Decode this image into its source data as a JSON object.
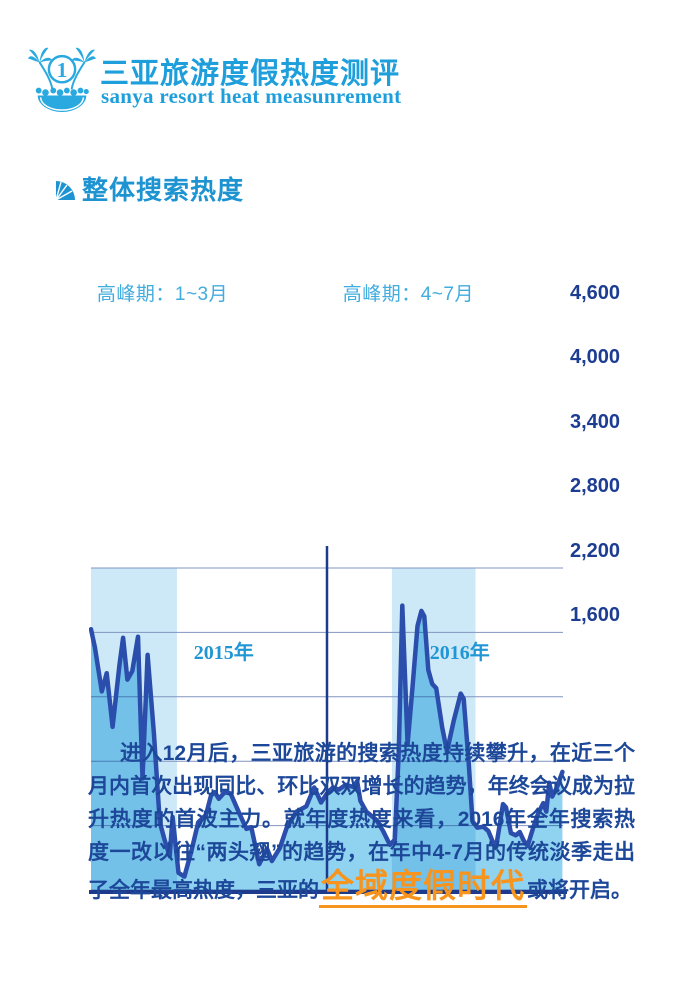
{
  "header": {
    "title": "三亚旅游度假热度测评",
    "subtitle": "sanya resort heat measunrement",
    "logo_number": "1"
  },
  "section": {
    "title": "整体搜索热度"
  },
  "chart_data": {
    "type": "area",
    "title": "整体搜索热度",
    "x_axis": {
      "range_months": [
        0,
        24
      ],
      "divider_month": 12,
      "year_labels": [
        {
          "label": "2015年",
          "center_month": 6.75
        },
        {
          "label": "2016年",
          "center_month": 18.75
        }
      ]
    },
    "y_axis": {
      "min": 1600,
      "max": 4600,
      "ticks": [
        4600,
        4000,
        3400,
        2800,
        2200,
        1600
      ],
      "tick_labels": [
        "4,600",
        "4,000",
        "3,400",
        "2,800",
        "2,200",
        "1,600"
      ]
    },
    "peak_bands": [
      {
        "label": "高峰期：1~3月",
        "from_month": 0,
        "to_month": 4.37,
        "label_month": 0.3
      },
      {
        "label": "高峰期：4~7月",
        "from_month": 15.3,
        "to_month": 19.55,
        "label_month": 12.8
      }
    ],
    "grid": true,
    "legend": false,
    "series": [
      {
        "points": [
          [
            0,
            4030
          ],
          [
            0.2,
            3860
          ],
          [
            0.55,
            3450
          ],
          [
            0.8,
            3620
          ],
          [
            1.1,
            3120
          ],
          [
            1.45,
            3700
          ],
          [
            1.63,
            3950
          ],
          [
            1.85,
            3560
          ],
          [
            2.1,
            3640
          ],
          [
            2.39,
            3960
          ],
          [
            2.62,
            2640
          ],
          [
            2.88,
            3790
          ],
          [
            3.2,
            3060
          ],
          [
            3.5,
            2230
          ],
          [
            3.75,
            2060
          ],
          [
            4,
            1915
          ],
          [
            4.15,
            2280
          ],
          [
            4.45,
            1760
          ],
          [
            4.75,
            1725
          ],
          [
            5.1,
            1960
          ],
          [
            5.45,
            2230
          ],
          [
            5.85,
            2300
          ],
          [
            6.1,
            2480
          ],
          [
            6.3,
            2510
          ],
          [
            6.5,
            2450
          ],
          [
            6.8,
            2510
          ],
          [
            7.1,
            2500
          ],
          [
            7.55,
            2310
          ],
          [
            7.9,
            2170
          ],
          [
            8.15,
            2185
          ],
          [
            8.55,
            1840
          ],
          [
            8.95,
            1985
          ],
          [
            9.2,
            1870
          ],
          [
            9.6,
            1990
          ],
          [
            9.95,
            2180
          ],
          [
            10.45,
            2330
          ],
          [
            10.95,
            2380
          ],
          [
            11.35,
            2555
          ],
          [
            11.7,
            2415
          ],
          [
            12,
            2500
          ],
          [
            12.3,
            2555
          ],
          [
            12.6,
            2535
          ],
          [
            12.95,
            2580
          ],
          [
            13.35,
            2560
          ],
          [
            13.53,
            2615
          ],
          [
            13.7,
            2430
          ],
          [
            14,
            2330
          ],
          [
            14.5,
            2255
          ],
          [
            14.85,
            2150
          ],
          [
            15.2,
            2020
          ],
          [
            15.45,
            2070
          ],
          [
            15.65,
            2900
          ],
          [
            15.83,
            4250
          ],
          [
            16.1,
            2960
          ],
          [
            16.35,
            3500
          ],
          [
            16.6,
            4060
          ],
          [
            16.8,
            4200
          ],
          [
            16.95,
            4150
          ],
          [
            17.15,
            3650
          ],
          [
            17.35,
            3520
          ],
          [
            17.55,
            3480
          ],
          [
            17.85,
            3120
          ],
          [
            18.1,
            2890
          ],
          [
            18.45,
            3180
          ],
          [
            18.8,
            3430
          ],
          [
            18.95,
            3380
          ],
          [
            19.2,
            2800
          ],
          [
            19.4,
            2240
          ],
          [
            19.65,
            2180
          ],
          [
            19.95,
            2190
          ],
          [
            20.2,
            2150
          ],
          [
            20.45,
            2040
          ],
          [
            20.6,
            2000
          ],
          [
            20.95,
            2400
          ],
          [
            21.1,
            2370
          ],
          [
            21.35,
            2130
          ],
          [
            21.6,
            2110
          ],
          [
            21.8,
            2140
          ],
          [
            22,
            2060
          ],
          [
            22.2,
            2010
          ],
          [
            22.5,
            2190
          ],
          [
            22.75,
            2320
          ],
          [
            23,
            2410
          ],
          [
            23.15,
            2330
          ],
          [
            23.3,
            2600
          ],
          [
            23.45,
            2470
          ],
          [
            23.7,
            2560
          ],
          [
            23.97,
            2700
          ]
        ]
      }
    ]
  },
  "paragraph": {
    "part1": "进入12月后，三亚旅游的搜索热度持续攀升，在近三个月内首次出现同比、环比双双增长的趋势，年终会议成为拉升热度的首波主力。就年度热度来看，2016年全年搜索热度一改以往“两头翘”的趋势，在年中4-7月的传统淡季走出了全年最高热度，三亚的",
    "highlight": "全域度假时代",
    "part3": "或将开启。"
  },
  "colors": {
    "azure": "#1E9FDB",
    "band": "#CDE9F7",
    "area_fill": "#8FD3F1",
    "line": "#2B4EAC",
    "grid": "#8094C0",
    "axis": "#1E3A8C",
    "tick_text": "#1D3D92",
    "band_label": "#41ACDE",
    "year_label": "#2196D4",
    "body_text": "#1D4899",
    "highlight": "#F7941E"
  }
}
